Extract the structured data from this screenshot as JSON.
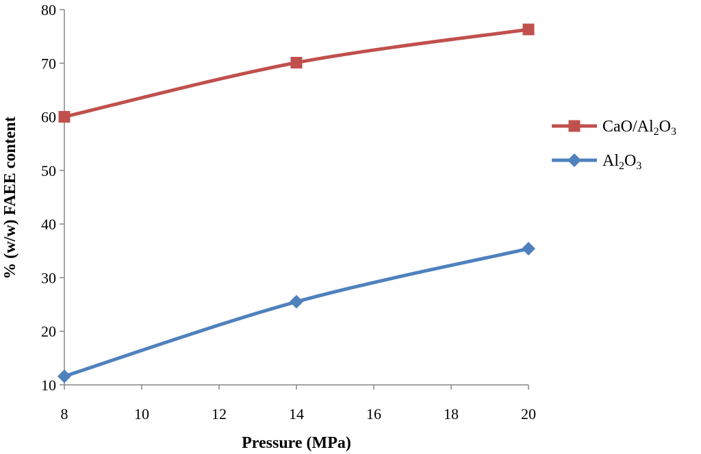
{
  "chart_data": {
    "type": "line",
    "title": "",
    "xlabel": "Pressure (MPa)",
    "ylabel": "% (w/w) FAEE content",
    "xlim": [
      8,
      20
    ],
    "ylim": [
      10,
      80
    ],
    "xticks": [
      8,
      10,
      12,
      14,
      16,
      18,
      20
    ],
    "yticks": [
      10,
      20,
      30,
      40,
      50,
      60,
      70,
      80
    ],
    "grid": false,
    "legend_position": "right",
    "series": [
      {
        "name": "CaO/Al2O3",
        "legend_parts": [
          {
            "text": "CaO/Al",
            "sub": false
          },
          {
            "text": "2",
            "sub": true
          },
          {
            "text": "O",
            "sub": false
          },
          {
            "text": "3",
            "sub": true
          }
        ],
        "marker": "square",
        "color": "#C0504D",
        "x": [
          8,
          14,
          20
        ],
        "y": [
          60.0,
          70.1,
          76.3
        ]
      },
      {
        "name": "Al2O3",
        "legend_parts": [
          {
            "text": "Al",
            "sub": false
          },
          {
            "text": "2",
            "sub": true
          },
          {
            "text": "O",
            "sub": false
          },
          {
            "text": "3",
            "sub": true
          }
        ],
        "marker": "diamond",
        "color": "#4F81BD",
        "x": [
          8,
          14,
          20
        ],
        "y": [
          11.6,
          25.5,
          35.4
        ]
      }
    ]
  }
}
